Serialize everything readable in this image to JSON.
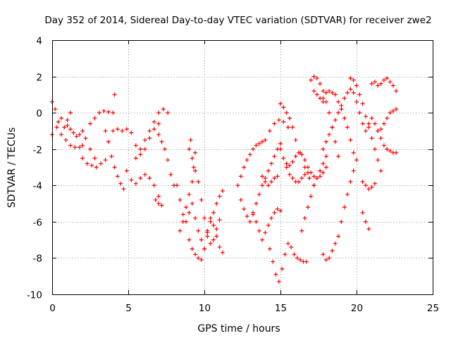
{
  "chart_data": {
    "type": "scatter",
    "title": "Day 352 of 2014, Sidereal Day-to-day VTEC variation (SDTVAR) for receiver zwe2",
    "xlabel": "GPS time / hours",
    "ylabel": "SDTVAR / TECUs",
    "xlim": [
      0,
      25
    ],
    "ylim": [
      -10,
      4
    ],
    "xticks": [
      0,
      5,
      10,
      15,
      20,
      25
    ],
    "yticks": [
      -10,
      -8,
      -6,
      -4,
      -2,
      0,
      2,
      4
    ],
    "grid": true,
    "marker": "plus",
    "color": "#ff0000",
    "series": [
      {
        "x": [
          0.0,
          0.2,
          0.4,
          0.6,
          0.8,
          1.0,
          1.2
        ],
        "y": [
          0.6,
          0.2,
          -0.5,
          -1.2,
          -0.8,
          -0.4,
          0.0
        ]
      },
      {
        "x": [
          0.0,
          0.3,
          0.6,
          0.9,
          1.2,
          1.5,
          1.8,
          2.0
        ],
        "y": [
          -1.2,
          -0.8,
          -0.3,
          -1.5,
          -1.8,
          -1.9,
          -1.9,
          -1.8
        ]
      },
      {
        "x": [
          1.0,
          1.2,
          1.4,
          1.6,
          1.8,
          2.0,
          2.2,
          2.5,
          2.8
        ],
        "y": [
          -0.7,
          -0.9,
          -1.1,
          -1.3,
          -1.2,
          -1.0,
          -1.4,
          -2.0,
          -2.5
        ]
      },
      {
        "x": [
          2.0,
          2.3,
          2.6,
          2.9,
          3.2,
          3.5
        ],
        "y": [
          -2.5,
          -2.8,
          -2.9,
          -3.0,
          -2.8,
          -2.6
        ]
      },
      {
        "x": [
          2.5,
          2.8,
          3.1,
          3.4,
          3.7,
          4.0
        ],
        "y": [
          -0.6,
          -0.3,
          0.0,
          0.1,
          0.05,
          0.0
        ]
      },
      {
        "x": [
          3.5,
          3.7,
          3.9,
          4.1,
          4.3,
          4.5,
          4.7
        ],
        "y": [
          -1.0,
          -1.6,
          -2.4,
          -3.0,
          -3.5,
          -3.9,
          -4.2
        ]
      },
      {
        "x": [
          4.0,
          4.3,
          4.6,
          4.9,
          5.2,
          5.5,
          5.8,
          6.1,
          6.4,
          6.7,
          7.0
        ],
        "y": [
          -1.0,
          -0.9,
          -1.0,
          -0.9,
          -1.1,
          -1.8,
          -2.3,
          -2.0,
          -1.4,
          -0.9,
          -0.6
        ]
      },
      {
        "x": [
          4.9,
          5.2,
          5.5,
          5.8,
          6.1,
          6.4,
          6.7,
          7.0
        ],
        "y": [
          -3.2,
          -3.7,
          -3.9,
          -3.6,
          -3.4,
          -3.6,
          -4.0,
          -4.6
        ]
      },
      {
        "x": [
          5.5,
          5.8,
          6.1,
          6.4,
          6.7,
          7.0,
          7.3,
          7.6
        ],
        "y": [
          -2.5,
          -2.0,
          -1.5,
          -1.0,
          -0.5,
          0.0,
          0.2,
          0.0
        ]
      },
      {
        "x": [
          7.0,
          7.2,
          7.4,
          7.6,
          7.8,
          8.0
        ],
        "y": [
          -1.2,
          -1.6,
          -2.0,
          -2.6,
          -3.4,
          -4.0
        ]
      },
      {
        "x": [
          4.1
        ],
        "y": [
          1.0
        ]
      },
      {
        "x": [
          6.8,
          7.0,
          7.2
        ],
        "y": [
          -4.8,
          -5.0,
          -5.1
        ]
      },
      {
        "x": [
          8.2,
          8.4,
          8.6,
          8.8,
          9.0,
          9.2,
          9.4,
          9.6,
          9.8,
          10.0,
          10.2,
          10.4,
          10.6,
          10.8,
          11.0,
          11.2
        ],
        "y": [
          -4.0,
          -4.8,
          -5.6,
          -6.0,
          -5.5,
          -5.0,
          -5.8,
          -6.5,
          -7.0,
          -7.5,
          -6.8,
          -6.0,
          -5.5,
          -5.0,
          -4.6,
          -4.3
        ]
      },
      {
        "x": [
          8.4,
          8.6,
          8.8,
          9.0,
          9.2,
          9.4,
          9.6,
          9.8,
          10.0,
          10.2,
          10.4,
          10.6,
          10.8,
          11.0
        ],
        "y": [
          -6.5,
          -6.0,
          -5.2,
          -4.5,
          -3.8,
          -3.2,
          -3.8,
          -4.8,
          -5.8,
          -6.6,
          -7.2,
          -7.0,
          -6.4,
          -5.9
        ]
      },
      {
        "x": [
          9.0,
          9.2,
          9.4,
          9.6,
          9.8,
          10.0,
          10.2,
          10.4,
          10.6,
          10.8,
          11.0,
          11.2
        ],
        "y": [
          -7.0,
          -7.5,
          -7.8,
          -8.0,
          -8.1,
          -7.5,
          -6.5,
          -5.8,
          -6.2,
          -6.8,
          -7.4,
          -7.7
        ]
      },
      {
        "x": [
          9.0,
          9.1,
          9.2,
          9.3,
          9.4
        ],
        "y": [
          -2.0,
          -1.5,
          -2.5,
          -3.0,
          -2.2
        ]
      },
      {
        "x": [
          12.2,
          12.4,
          12.6,
          12.8,
          13.0,
          13.2,
          13.4,
          13.6,
          13.8
        ],
        "y": [
          -4.0,
          -3.5,
          -3.0,
          -2.6,
          -2.3,
          -2.0,
          -1.8,
          -1.7,
          -1.6
        ]
      },
      {
        "x": [
          12.4,
          12.6,
          12.8,
          13.0,
          13.2,
          13.4,
          13.6,
          13.8,
          14.0,
          14.2,
          14.4,
          14.6,
          14.8,
          15.0
        ],
        "y": [
          -4.8,
          -5.3,
          -5.7,
          -6.0,
          -5.6,
          -5.0,
          -4.5,
          -4.0,
          -3.6,
          -3.2,
          -2.8,
          -2.4,
          -2.0,
          -1.7
        ]
      },
      {
        "x": [
          13.2,
          13.4,
          13.6,
          13.8,
          14.0,
          14.2,
          14.4,
          14.6,
          14.8,
          15.0
        ],
        "y": [
          -5.5,
          -6.0,
          -6.5,
          -7.0,
          -6.6,
          -6.2,
          -5.8,
          -5.5,
          -5.3,
          -5.4
        ]
      },
      {
        "x": [
          13.8,
          14.0,
          14.2,
          14.4,
          14.6,
          14.8
        ],
        "y": [
          -3.5,
          -3.8,
          -4.0,
          -3.8,
          -3.6,
          -3.5
        ]
      },
      {
        "x": [
          14.3,
          14.5,
          14.7,
          14.9,
          15.1,
          15.3,
          15.5,
          15.7,
          15.9,
          16.1,
          16.3,
          16.5,
          16.7
        ],
        "y": [
          -7.5,
          -8.2,
          -8.9,
          -9.3,
          -8.6,
          -7.8,
          -7.2,
          -7.4,
          -7.8,
          -8.0,
          -8.1,
          -8.2,
          -8.2
        ]
      },
      {
        "x": [
          14.0,
          14.3,
          14.6,
          14.9,
          15.2,
          15.5
        ],
        "y": [
          -1.5,
          -1.0,
          -0.6,
          -0.4,
          -0.5,
          -0.8
        ]
      },
      {
        "x": [
          15.0,
          15.2,
          15.4,
          15.6,
          15.8,
          16.0,
          16.2,
          16.4,
          16.6,
          16.8,
          17.0,
          17.2,
          17.4,
          17.6,
          17.8,
          18.0
        ],
        "y": [
          -2.0,
          -2.5,
          -2.8,
          -2.9,
          -2.7,
          -2.4,
          -2.2,
          -2.3,
          -2.6,
          -3.0,
          -3.3,
          -3.5,
          -3.6,
          -3.5,
          -3.3,
          -3.0
        ]
      },
      {
        "x": [
          15.0,
          15.2,
          15.4,
          15.6,
          15.8,
          16.0,
          16.3,
          16.6,
          16.9,
          17.2
        ],
        "y": [
          0.5,
          0.3,
          0.0,
          -0.3,
          -0.8,
          -1.5,
          -2.2,
          -3.0,
          -3.6,
          -4.0
        ]
      },
      {
        "x": [
          15.4,
          15.6,
          15.8,
          16.0,
          16.2,
          16.4,
          16.6,
          16.8
        ],
        "y": [
          -3.0,
          -3.4,
          -3.6,
          -3.8,
          -3.8,
          -3.6,
          -3.4,
          -3.3
        ]
      },
      {
        "x": [
          16.4,
          16.6,
          16.8,
          17.0,
          17.2,
          17.4,
          17.6,
          17.8,
          18.0
        ],
        "y": [
          -6.5,
          -5.8,
          -5.2,
          -4.6,
          -4.0,
          -3.6,
          -3.2,
          -2.8,
          -2.4
        ]
      },
      {
        "x": [
          17.0,
          17.2,
          17.4,
          17.6,
          17.8,
          18.0,
          18.2,
          18.4,
          18.6,
          18.8
        ],
        "y": [
          1.8,
          2.0,
          1.9,
          1.6,
          1.2,
          0.6,
          0.0,
          -0.8,
          -1.6,
          -2.4
        ]
      },
      {
        "x": [
          17.2,
          17.4,
          17.6,
          17.8
        ],
        "y": [
          1.2,
          1.0,
          0.8,
          0.6
        ]
      },
      {
        "x": [
          17.8,
          18.0,
          18.2,
          18.4,
          18.6,
          18.8,
          19.0,
          19.2,
          19.4,
          19.6,
          19.8
        ],
        "y": [
          0.8,
          1.1,
          1.2,
          1.1,
          1.0,
          0.6,
          0.2,
          -0.3,
          -0.8,
          -1.5,
          -2.2
        ]
      },
      {
        "x": [
          17.8,
          18.0,
          18.2,
          18.4,
          18.6,
          18.8,
          19.0,
          19.2,
          19.4,
          19.6,
          19.8,
          20.0,
          20.2,
          20.4
        ],
        "y": [
          -2.0,
          -1.6,
          -1.2,
          -0.8,
          -0.4,
          0.0,
          0.4,
          0.8,
          1.1,
          1.3,
          1.1,
          0.6,
          0.0,
          -0.6
        ]
      },
      {
        "x": [
          17.8,
          18.0,
          18.2,
          18.4,
          18.6,
          18.8,
          19.0,
          19.2,
          19.4,
          19.6,
          19.8,
          20.0
        ],
        "y": [
          -7.8,
          -8.1,
          -8.0,
          -7.6,
          -7.2,
          -6.8,
          -6.0,
          -5.2,
          -4.5,
          -3.8,
          -3.2,
          -2.6
        ]
      },
      {
        "x": [
          19.6,
          19.8,
          20.0,
          20.2,
          20.4,
          20.6,
          20.8,
          21.0,
          21.2,
          21.4,
          21.6
        ],
        "y": [
          1.9,
          1.8,
          1.5,
          1.0,
          0.5,
          -0.2,
          -0.8,
          -1.4,
          -2.0,
          -2.6,
          -3.2
        ]
      },
      {
        "x": [
          20.4,
          20.6,
          20.8
        ],
        "y": [
          -5.5,
          -6.0,
          -6.4
        ]
      },
      {
        "x": [
          20.4,
          20.6,
          20.8,
          21.0,
          21.2
        ],
        "y": [
          -3.8,
          -4.0,
          -4.2,
          -4.1,
          -3.9
        ]
      },
      {
        "x": [
          20.6,
          20.8,
          21.0,
          21.2,
          21.4,
          21.6,
          21.8,
          22.0,
          22.2,
          22.4,
          22.6
        ],
        "y": [
          -1.0,
          -0.6,
          -0.3,
          -0.6,
          -1.0,
          -0.9,
          -0.6,
          -0.3,
          0.0,
          0.1,
          0.2
        ]
      },
      {
        "x": [
          21.0,
          21.2,
          21.4,
          21.6,
          21.8,
          22.0,
          22.2,
          22.4,
          22.6
        ],
        "y": [
          1.6,
          1.7,
          1.5,
          1.6,
          1.8,
          1.9,
          1.7,
          1.5,
          1.2
        ]
      },
      {
        "x": [
          21.4,
          21.6,
          21.8,
          22.0,
          22.2,
          22.4,
          22.6
        ],
        "y": [
          -1.0,
          -1.4,
          -1.8,
          -2.0,
          -2.1,
          -2.2,
          -2.2
        ]
      }
    ]
  }
}
